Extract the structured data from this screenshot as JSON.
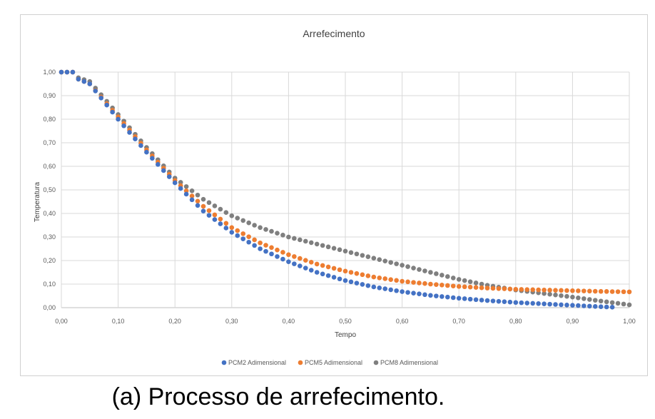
{
  "chart_data": {
    "type": "scatter",
    "title": "Arrefecimento",
    "xlabel": "Tempo",
    "ylabel": "Temperatura",
    "xlim": [
      0,
      1
    ],
    "ylim": [
      0,
      1
    ],
    "xticks": [
      "0,00",
      "0,10",
      "0,20",
      "0,30",
      "0,40",
      "0,50",
      "0,60",
      "0,70",
      "0,80",
      "0,90",
      "1,00"
    ],
    "yticks": [
      "0,00",
      "0,10",
      "0,20",
      "0,30",
      "0,40",
      "0,50",
      "0,60",
      "0,70",
      "0,80",
      "0,90",
      "1,00"
    ],
    "grid": true,
    "legend_position": "bottom",
    "series": [
      {
        "name": "PCM2 Adimensional",
        "color": "#4472c4",
        "x": [
          0.0,
          0.05,
          0.1,
          0.15,
          0.2,
          0.25,
          0.3,
          0.35,
          0.4,
          0.45,
          0.5,
          0.55,
          0.6,
          0.65,
          0.7,
          0.75,
          0.8,
          0.85,
          0.9,
          0.95,
          0.97
        ],
        "y": [
          1.0,
          0.95,
          0.8,
          0.66,
          0.53,
          0.41,
          0.32,
          0.25,
          0.195,
          0.15,
          0.115,
          0.088,
          0.068,
          0.052,
          0.04,
          0.03,
          0.022,
          0.016,
          0.01,
          0.004,
          0.002
        ]
      },
      {
        "name": "PCM5 Adimensional",
        "color": "#ed7d31",
        "x": [
          0.0,
          0.05,
          0.1,
          0.15,
          0.2,
          0.25,
          0.3,
          0.35,
          0.4,
          0.45,
          0.5,
          0.55,
          0.6,
          0.65,
          0.7,
          0.75,
          0.8,
          0.85,
          0.9,
          0.95,
          1.0
        ],
        "y": [
          1.0,
          0.95,
          0.81,
          0.67,
          0.54,
          0.43,
          0.34,
          0.275,
          0.225,
          0.185,
          0.155,
          0.13,
          0.112,
          0.1,
          0.09,
          0.083,
          0.078,
          0.075,
          0.072,
          0.069,
          0.067
        ]
      },
      {
        "name": "PCM8 Adimensional",
        "color": "#7f7f7f",
        "x": [
          0.0,
          0.05,
          0.1,
          0.15,
          0.2,
          0.25,
          0.3,
          0.35,
          0.4,
          0.45,
          0.5,
          0.55,
          0.6,
          0.65,
          0.7,
          0.75,
          0.8,
          0.85,
          0.9,
          0.95,
          1.0
        ],
        "y": [
          1.0,
          0.96,
          0.82,
          0.68,
          0.55,
          0.46,
          0.39,
          0.34,
          0.3,
          0.27,
          0.24,
          0.21,
          0.18,
          0.15,
          0.12,
          0.095,
          0.075,
          0.06,
          0.045,
          0.028,
          0.012
        ]
      }
    ]
  },
  "caption": "(a)  Processo de arrefecimento."
}
